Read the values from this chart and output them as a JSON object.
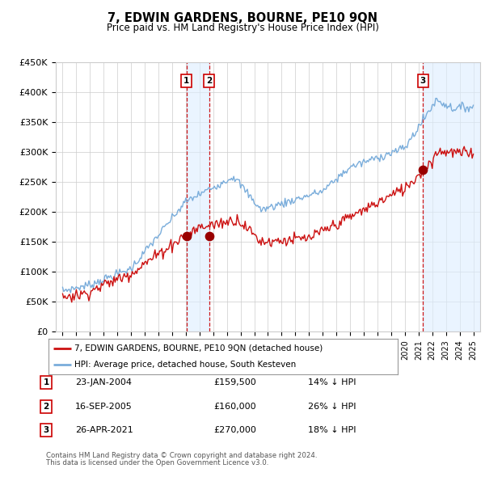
{
  "title": "7, EDWIN GARDENS, BOURNE, PE10 9QN",
  "subtitle": "Price paid vs. HM Land Registry's House Price Index (HPI)",
  "legend_line1": "7, EDWIN GARDENS, BOURNE, PE10 9QN (detached house)",
  "legend_line2": "HPI: Average price, detached house, South Kesteven",
  "footnote1": "Contains HM Land Registry data © Crown copyright and database right 2024.",
  "footnote2": "This data is licensed under the Open Government Licence v3.0.",
  "sales": [
    {
      "num": 1,
      "date": "23-JAN-2004",
      "price": 159500,
      "hpi_diff": "14% ↓ HPI",
      "year": 2004.06
    },
    {
      "num": 2,
      "date": "16-SEP-2005",
      "price": 160000,
      "hpi_diff": "26% ↓ HPI",
      "year": 2005.71
    },
    {
      "num": 3,
      "date": "26-APR-2021",
      "price": 270000,
      "hpi_diff": "18% ↓ HPI",
      "year": 2021.32
    }
  ],
  "hpi_color": "#7aaddb",
  "price_color": "#cc1111",
  "sale_marker_color": "#990000",
  "vline_color": "#cc0000",
  "highlight_color": "#ddeeff",
  "grid_color": "#cccccc",
  "background_color": "#ffffff",
  "ylim": [
    0,
    450000
  ],
  "xlim": [
    1994.5,
    2025.5
  ],
  "yticks": [
    0,
    50000,
    100000,
    150000,
    200000,
    250000,
    300000,
    350000,
    400000,
    450000
  ],
  "ytick_labels": [
    "£0",
    "£50K",
    "£100K",
    "£150K",
    "£200K",
    "£250K",
    "£300K",
    "£350K",
    "£400K",
    "£450K"
  ],
  "xticks": [
    1995,
    1996,
    1997,
    1998,
    1999,
    2000,
    2001,
    2002,
    2003,
    2004,
    2005,
    2006,
    2007,
    2008,
    2009,
    2010,
    2011,
    2012,
    2013,
    2014,
    2015,
    2016,
    2017,
    2018,
    2019,
    2020,
    2021,
    2022,
    2023,
    2024,
    2025
  ]
}
